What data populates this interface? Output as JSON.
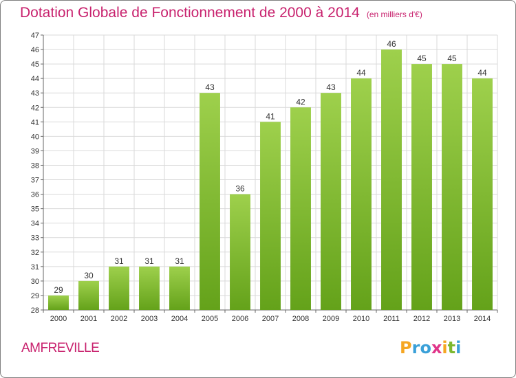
{
  "chart_data": {
    "type": "bar",
    "title": "Dotation Globale de Fonctionnement de 2000 à 2014",
    "subtitle": "(en milliers d'€)",
    "categories": [
      "2000",
      "2001",
      "2002",
      "2003",
      "2004",
      "2005",
      "2006",
      "2007",
      "2008",
      "2009",
      "2010",
      "2011",
      "2012",
      "2013",
      "2014"
    ],
    "values": [
      29,
      30,
      31,
      31,
      31,
      43,
      36,
      41,
      42,
      43,
      44,
      46,
      45,
      45,
      44
    ],
    "ylim": [
      28,
      47
    ],
    "yticks": [
      28,
      29,
      30,
      31,
      32,
      33,
      34,
      35,
      36,
      37,
      38,
      39,
      40,
      41,
      42,
      43,
      44,
      45,
      46,
      47
    ],
    "grid": true,
    "xlabel": "",
    "ylabel": "",
    "bar_color_top": "#9ed04c",
    "bar_color_bottom": "#64a21a"
  },
  "commune": "AMFREVILLE",
  "logo": {
    "letters": [
      "P",
      "r",
      "o",
      "x",
      "i",
      "t",
      "i"
    ],
    "colors": [
      "#f5a623",
      "#3aa0d8",
      "#3aa0d8",
      "#e0358a",
      "#f5a623",
      "#7cb82f",
      "#3aa0d8"
    ]
  },
  "colors": {
    "title": "#c8226e",
    "grid": "#d9d9d9",
    "axis": "#666666"
  }
}
